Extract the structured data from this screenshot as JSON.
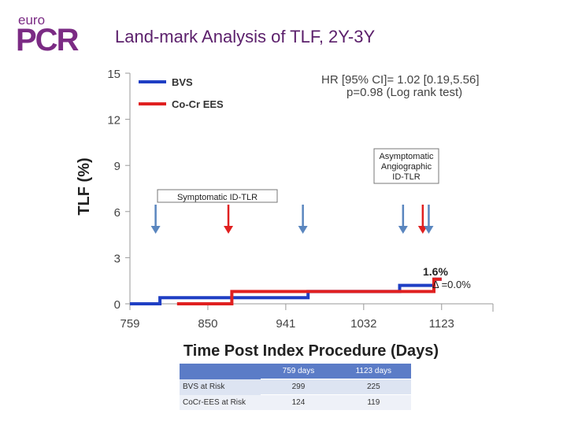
{
  "logo": {
    "top": "euro",
    "main": "PCR"
  },
  "slide_title": "Land-mark Analysis of TLF, 2Y-3Y",
  "chart_data": {
    "type": "line",
    "title": "",
    "xlabel": "Time Post Index Procedure (Days)",
    "ylabel": "TLF (%)",
    "xlim": [
      759,
      1183
    ],
    "ylim": [
      0,
      15
    ],
    "x_ticks": [
      759,
      850,
      941,
      1032,
      1123
    ],
    "y_ticks": [
      0,
      3,
      6,
      9,
      12,
      15
    ],
    "legend_position": "top-left",
    "series": [
      {
        "name": "BVS",
        "color": "#1f3fc4",
        "step": true,
        "points": [
          [
            759,
            0
          ],
          [
            794,
            0
          ],
          [
            794,
            0.4
          ],
          [
            967,
            0.4
          ],
          [
            967,
            0.8
          ],
          [
            1074,
            0.8
          ],
          [
            1074,
            1.2
          ],
          [
            1114,
            1.2
          ],
          [
            1114,
            1.6
          ],
          [
            1123,
            1.6
          ]
        ]
      },
      {
        "name": "Co-Cr EES",
        "color": "#e02020",
        "step": true,
        "points": [
          [
            814,
            0
          ],
          [
            878,
            0
          ],
          [
            878,
            0.8
          ],
          [
            1114,
            0.8
          ],
          [
            1114,
            1.6
          ],
          [
            1123,
            1.6
          ]
        ]
      }
    ],
    "hr_text": "HR [95% CI]= 1.02 [0.19,5.56]",
    "p_text": "p=0.98 (Log rank test)",
    "annotations": {
      "symptomatic_box": "Symptomatic ID-TLR",
      "asymptomatic_box": [
        "Asymptomatic",
        "Angiographic",
        "ID-TLR"
      ],
      "end_rate": "1.6%",
      "delta": "Δ =0.0%"
    },
    "event_arrows": [
      {
        "x": 789,
        "color": "#5a86bf"
      },
      {
        "x": 874,
        "color": "#e02020"
      },
      {
        "x": 961,
        "color": "#5a86bf"
      },
      {
        "x": 1078,
        "color": "#5a86bf"
      },
      {
        "x": 1101,
        "color": "#e02020"
      },
      {
        "x": 1108,
        "color": "#5a86bf"
      }
    ]
  },
  "risk_table": {
    "headers": [
      "759 days",
      "1123 days"
    ],
    "rows": [
      {
        "label": "BVS at Risk",
        "values": [
          "299",
          "225"
        ]
      },
      {
        "label": "CoCr-EES at Risk",
        "values": [
          "124",
          "119"
        ]
      }
    ]
  }
}
